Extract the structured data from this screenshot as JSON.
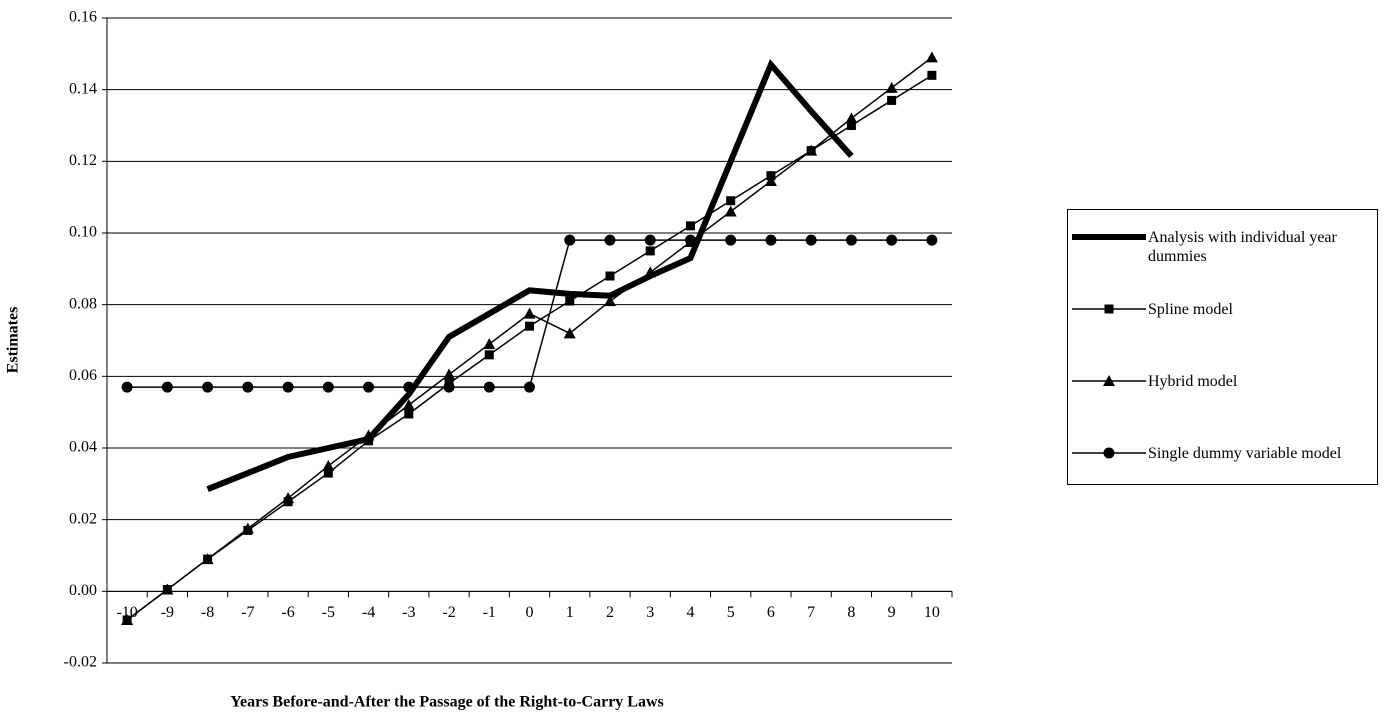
{
  "chart_data": {
    "type": "line",
    "y_label": "Estimates",
    "x_label": "Years Before-and-After the Passage of the Right-to-Carry Laws",
    "categories": [
      -10,
      -9,
      -8,
      -7,
      -6,
      -5,
      -4,
      -3,
      -2,
      -1,
      0,
      1,
      2,
      3,
      4,
      5,
      6,
      7,
      8,
      9,
      10
    ],
    "ylim": [
      -0.02,
      0.16
    ],
    "yticks": [
      {
        "value": -0.02,
        "label": "-0.02"
      },
      {
        "value": 0,
        "label": "0.00"
      },
      {
        "value": 0.02,
        "label": "0.02"
      },
      {
        "value": 0.04,
        "label": "0.04"
      },
      {
        "value": 0.06,
        "label": "0.06"
      },
      {
        "value": 0.08,
        "label": "0.08"
      },
      {
        "value": 0.1,
        "label": "0.10"
      },
      {
        "value": 0.12,
        "label": "0.12"
      },
      {
        "value": 0.14,
        "label": "0.14"
      },
      {
        "value": 0.16,
        "label": "0.16"
      }
    ],
    "grid": true,
    "legend": "right",
    "series": [
      {
        "name": "Analysis with individual year dummies",
        "color": "#000000",
        "marker": "none",
        "values": [
          null,
          null,
          0.0285,
          0.033,
          0.0375,
          0.04,
          0.0425,
          0.055,
          0.071,
          0.0775,
          0.084,
          0.083,
          0.0825,
          0.088,
          0.093,
          0.12,
          0.147,
          0.134,
          0.1215,
          null,
          null
        ]
      },
      {
        "name": "Spline model",
        "color": "#000000",
        "marker": "square",
        "values": [
          -0.008,
          0.0005,
          0.009,
          0.017,
          0.025,
          0.033,
          0.042,
          0.0495,
          0.058,
          0.066,
          0.074,
          0.081,
          0.088,
          0.095,
          0.102,
          0.109,
          0.116,
          0.123,
          0.13,
          0.137,
          0.144
        ]
      },
      {
        "name": "Hybrid model",
        "color": "#000000",
        "marker": "triangle",
        "values": [
          -0.008,
          0.0005,
          0.009,
          0.0175,
          0.026,
          0.035,
          0.0435,
          0.052,
          0.0605,
          0.069,
          0.0775,
          0.072,
          0.081,
          0.089,
          0.0975,
          0.106,
          0.1145,
          0.123,
          0.132,
          0.1405,
          0.149
        ]
      },
      {
        "name": "Single dummy variable model",
        "color": "#000000",
        "marker": "circle",
        "values": [
          0.057,
          0.057,
          0.057,
          0.057,
          0.057,
          0.057,
          0.057,
          0.057,
          0.057,
          0.057,
          0.057,
          0.098,
          0.098,
          0.098,
          0.098,
          0.098,
          0.098,
          0.098,
          0.098,
          0.098,
          0.098
        ]
      }
    ]
  }
}
